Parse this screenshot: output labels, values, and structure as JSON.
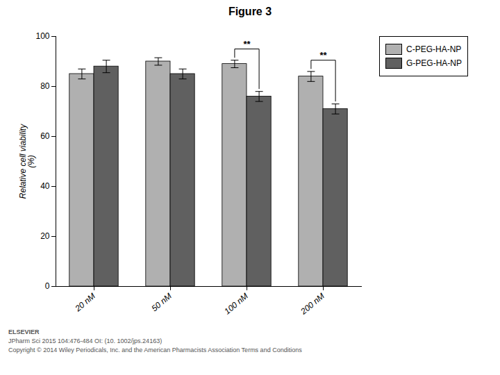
{
  "chart_data": {
    "type": "bar",
    "title": "Figure 3",
    "ylabel": "Relative cell viability\n(%)",
    "categories": [
      "20 nM",
      "50 nM",
      "100 nM",
      "200 nM"
    ],
    "series": [
      {
        "name": "C-PEG-HA-NP",
        "color": "#b0b0b0",
        "values": [
          85,
          90,
          89,
          84
        ],
        "errors": [
          2.0,
          1.5,
          1.5,
          2.0
        ]
      },
      {
        "name": "G-PEG-HA-NP",
        "color": "#606060",
        "values": [
          88,
          85,
          76,
          71
        ],
        "errors": [
          2.5,
          2.0,
          2.0,
          2.0
        ]
      }
    ],
    "ylim": [
      0,
      100
    ],
    "yticks": [
      0,
      20,
      40,
      60,
      80,
      100
    ],
    "grid": false,
    "legend": "upper right",
    "significance": [
      {
        "category": "100 nM",
        "label": "**"
      },
      {
        "category": "200 nM",
        "label": "**"
      }
    ],
    "annotations": [
      "ELSEVIER",
      "JPharm Sci 2015 104:476-484 OI: (10. 1002/jps.24163)",
      "Copyright © 2014 Wiley Periodicals, Inc. and the American Pharmacists Association Terms and Conditions"
    ]
  }
}
